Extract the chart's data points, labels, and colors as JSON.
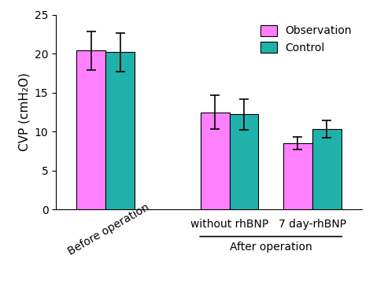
{
  "groups": [
    "Before operation",
    "without rhBNP",
    "7 day-rhBNP"
  ],
  "observation_values": [
    20.4,
    12.5,
    8.5
  ],
  "control_values": [
    20.2,
    12.2,
    10.3
  ],
  "observation_errors": [
    2.5,
    2.2,
    0.8
  ],
  "control_errors": [
    2.5,
    2.0,
    1.1
  ],
  "observation_color": "#FF80FF",
  "control_color": "#20B2AA",
  "ylabel": "CVP (cmH₂O)",
  "ylim": [
    0,
    25
  ],
  "yticks": [
    0,
    5,
    10,
    15,
    20,
    25
  ],
  "legend_labels": [
    "Observation",
    "Control"
  ],
  "bar_width": 0.35,
  "group_positions": [
    1.0,
    2.5,
    3.5
  ],
  "after_operation_label": "After operation",
  "before_operation_label": "Before operation",
  "without_rhbnp_label": "without rhBNP",
  "seven_day_label": "7 day-rhBNP",
  "xlabel_fontsize": 10,
  "ylabel_fontsize": 11,
  "tick_fontsize": 10,
  "legend_fontsize": 10,
  "capsize": 4
}
